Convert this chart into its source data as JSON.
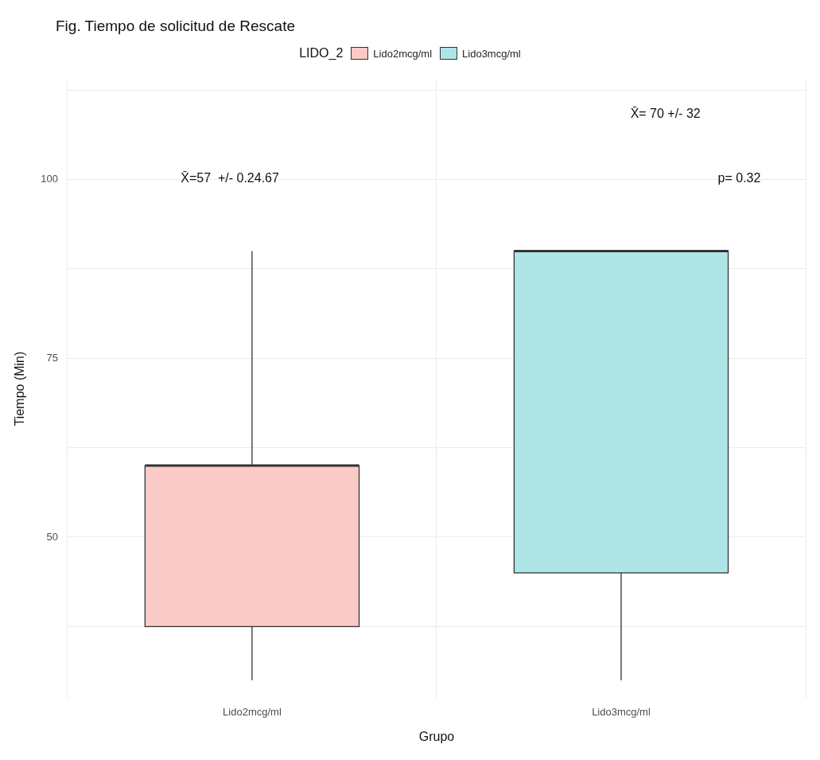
{
  "chart_data": {
    "type": "box",
    "title": "Fig. Tiempo de solicitud de Rescate",
    "xlabel": "Grupo",
    "ylabel": "Tiempo (Min)",
    "legend_title": "LIDO_2",
    "legend": "top",
    "categories": [
      "Lido2mcg/ml",
      "Lido3mcg/ml"
    ],
    "series": [
      {
        "name": "Lido2mcg/ml",
        "color": "#f9cac6",
        "boxes": [
          {
            "low": 30,
            "q1": 37.5,
            "median": 60,
            "q3": 60,
            "high": 90
          },
          null
        ]
      },
      {
        "name": "Lido3mcg/ml",
        "color": "#b0e5e7",
        "boxes": [
          null,
          {
            "low": 30,
            "q1": 45,
            "median": 90,
            "q3": 90,
            "high": 90
          }
        ]
      }
    ],
    "ylim": [
      27.5,
      114
    ],
    "yticks": [
      {
        "value": 37.5,
        "label": null
      },
      50,
      {
        "value": 62.5,
        "label": null
      },
      75,
      {
        "value": 87.5,
        "label": null
      },
      100,
      {
        "value": 112.5,
        "label": null
      }
    ],
    "grid": true,
    "annotations": [
      "X̄=57  +/- 0.24.67",
      "X̄= 70 +/- 32",
      "p= 0.32"
    ]
  }
}
